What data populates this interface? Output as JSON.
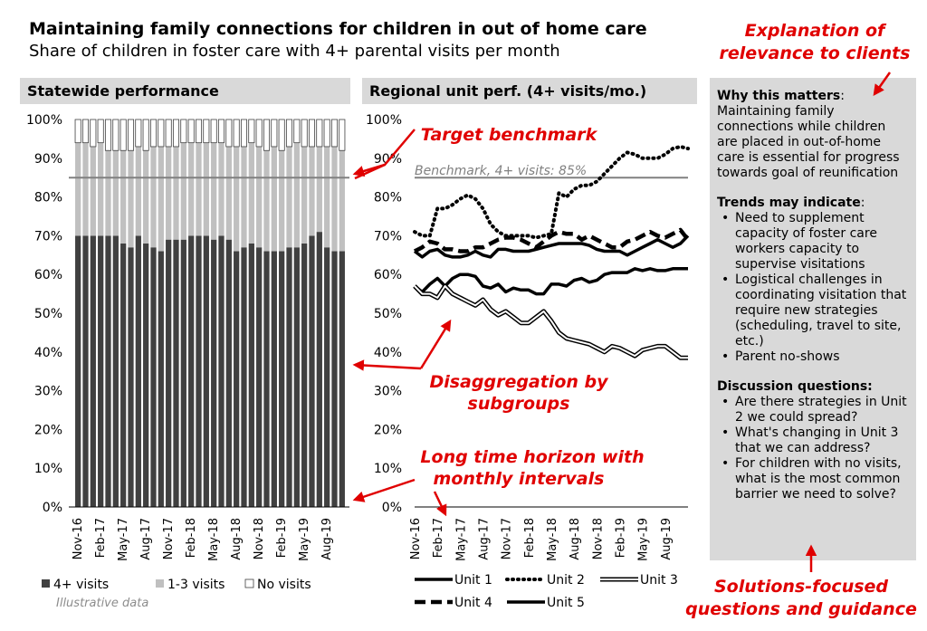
{
  "title": "Maintaining family connections for children in out of home care",
  "subtitle": "Share of children in foster care with 4+ parental visits per month",
  "left_panel_title": "Statewide performance",
  "mid_panel_title": "Regional unit perf. (4+ visits/mo.)",
  "footnote": "Illustrative data",
  "colors": {
    "dark": "#404040",
    "light": "#c0c0c0",
    "white": "#ffffff",
    "red": "#e00000",
    "panel_gray": "#d9d9d9",
    "benchmark": "#808080"
  },
  "annotations": {
    "explanation": [
      "Explanation of",
      "relevance to clients"
    ],
    "target": "Target benchmark",
    "disaggregation": [
      "Disaggregation by",
      "subgroups"
    ],
    "horizon": [
      "Long time horizon with",
      "monthly intervals"
    ],
    "solutions": [
      "Solutions-focused",
      "questions and guidance"
    ]
  },
  "side_panel": {
    "why_title": "Why this matters",
    "why_colon": ":",
    "why_body": "Maintaining family connections while children are placed in out-of-home care is essential for progress towards goal of reunification",
    "trends_title": "Trends may indicate",
    "trends_colon": ":",
    "trends": [
      "Need to supplement capacity of foster care workers capacity to supervise visitations",
      "Logistical challenges in coordinating visitation that require new strategies (scheduling, travel to site, etc.)",
      "Parent no-shows"
    ],
    "questions_title": "Discussion questions:",
    "questions": [
      "Are there strategies in Unit 2 we could spread?",
      "What's changing in Unit 3 that we can address?",
      "For children with no visits, what is the most common barrier we need to solve?"
    ]
  },
  "chart_data": [
    {
      "type": "bar",
      "stacked": true,
      "title": "Statewide performance",
      "categories": [
        "Nov-16",
        "Dec-16",
        "Jan-17",
        "Feb-17",
        "Mar-17",
        "Apr-17",
        "May-17",
        "Jun-17",
        "Jul-17",
        "Aug-17",
        "Sep-17",
        "Oct-17",
        "Nov-17",
        "Dec-17",
        "Jan-18",
        "Feb-18",
        "Mar-18",
        "Apr-18",
        "May-18",
        "Jun-18",
        "Jul-18",
        "Aug-18",
        "Sep-18",
        "Oct-18",
        "Nov-18",
        "Dec-18",
        "Jan-19",
        "Feb-19",
        "Mar-19",
        "Apr-19",
        "May-19",
        "Jun-19",
        "Jul-19",
        "Aug-19",
        "Sep-19",
        "Oct-19"
      ],
      "tick_labels": [
        "Nov-16",
        "Feb-17",
        "May-17",
        "Aug-17",
        "Nov-17",
        "Feb-18",
        "May-18",
        "Aug-18",
        "Nov-18",
        "Feb-19",
        "May-19",
        "Aug-19"
      ],
      "series": [
        {
          "name": "4+ visits",
          "values": [
            70,
            70,
            70,
            70,
            70,
            70,
            68,
            67,
            70,
            68,
            67,
            66,
            69,
            69,
            69,
            70,
            70,
            70,
            69,
            70,
            69,
            66,
            67,
            68,
            67,
            66,
            66,
            66,
            67,
            67,
            68,
            70,
            71,
            67,
            66,
            66
          ]
        },
        {
          "name": "1-3 visits",
          "values": [
            24,
            24,
            23,
            24,
            22,
            22,
            24,
            25,
            23,
            24,
            26,
            27,
            24,
            24,
            25,
            24,
            24,
            24,
            25,
            24,
            24,
            27,
            26,
            26,
            26,
            26,
            27,
            26,
            26,
            27,
            25,
            23,
            22,
            26,
            27,
            26
          ]
        },
        {
          "name": "No visits",
          "values": [
            6,
            6,
            7,
            6,
            8,
            8,
            8,
            8,
            7,
            8,
            7,
            7,
            7,
            7,
            6,
            6,
            6,
            6,
            6,
            6,
            7,
            7,
            7,
            6,
            7,
            8,
            7,
            8,
            7,
            6,
            7,
            7,
            7,
            7,
            7,
            8
          ]
        }
      ],
      "y_tick_labels": [
        "0%",
        "10%",
        "20%",
        "30%",
        "40%",
        "50%",
        "60%",
        "70%",
        "80%",
        "90%",
        "100%"
      ],
      "ylim": [
        0,
        100
      ],
      "benchmark": 85,
      "legend_position": "bottom"
    },
    {
      "type": "line",
      "title": "Regional unit perf. (4+ visits/mo.)",
      "tick_labels": [
        "Nov-16",
        "Feb-17",
        "May-17",
        "Aug-17",
        "Nov-17",
        "Feb-18",
        "May-18",
        "Aug-18",
        "Nov-18",
        "Feb-19",
        "May-19",
        "Aug-19"
      ],
      "ylim": [
        0,
        100
      ],
      "y_tick_labels": [
        "0%",
        "10%",
        "20%",
        "30%",
        "40%",
        "50%",
        "60%",
        "70%",
        "80%",
        "90%",
        "100%"
      ],
      "benchmark": {
        "label": "Benchmark, 4+ visits: 85%",
        "value": 85
      },
      "series": [
        {
          "name": "Unit 1",
          "style": "solid",
          "values": [
            57,
            55.5,
            57.5,
            59,
            57,
            59,
            60,
            60,
            59.5,
            57,
            56.5,
            57.5,
            55.5,
            56.5,
            56,
            56,
            55,
            55,
            57.5,
            57.5,
            57,
            58.5,
            59,
            58,
            58.5,
            60,
            60.5,
            60.5,
            60.5,
            61.5,
            61,
            61.5,
            61,
            61,
            61.5,
            61.5,
            61.5
          ]
        },
        {
          "name": "Unit 2",
          "style": "dotted",
          "values": [
            71,
            70,
            70,
            77,
            77,
            78,
            79.5,
            80.5,
            79.5,
            77,
            73,
            71,
            70,
            70,
            70,
            70,
            69.5,
            70,
            70.5,
            81,
            80,
            82,
            83,
            83,
            84,
            86,
            88,
            90,
            91.5,
            91,
            90,
            90,
            90,
            91,
            92.5,
            93,
            92.5
          ]
        },
        {
          "name": "Unit 3",
          "style": "double",
          "values": [
            57,
            55,
            55,
            54,
            57,
            55,
            54,
            53,
            52,
            53.5,
            51,
            49.5,
            50.5,
            49,
            47.5,
            47.5,
            49,
            50.5,
            48,
            45,
            43.5,
            43,
            42.5,
            42,
            41,
            40,
            41.5,
            41,
            40,
            39,
            40.5,
            41,
            41.5,
            41.5,
            40,
            38.5,
            38.5
          ]
        },
        {
          "name": "Unit 4",
          "style": "dashed",
          "values": [
            66,
            67,
            68.5,
            68,
            66.5,
            66.5,
            66,
            66,
            67,
            67,
            68,
            69,
            69.5,
            69.5,
            69,
            68,
            67,
            68.5,
            70,
            71,
            70.5,
            70.5,
            69,
            70,
            69,
            68,
            67,
            67,
            68.5,
            69,
            70,
            71,
            70,
            69.5,
            70.5,
            71.5,
            69
          ]
        },
        {
          "name": "Unit 5",
          "style": "solid-thick",
          "values": [
            66,
            64.5,
            66,
            66.5,
            65,
            64.5,
            64.5,
            65,
            66,
            65,
            64.5,
            66.5,
            66.5,
            66,
            66,
            66,
            66.5,
            67,
            67.5,
            68,
            68,
            68,
            68,
            67.5,
            66.5,
            66,
            66,
            66,
            65,
            66,
            67,
            68,
            69,
            68,
            67,
            68,
            70
          ]
        }
      ],
      "legend_position": "bottom"
    }
  ]
}
